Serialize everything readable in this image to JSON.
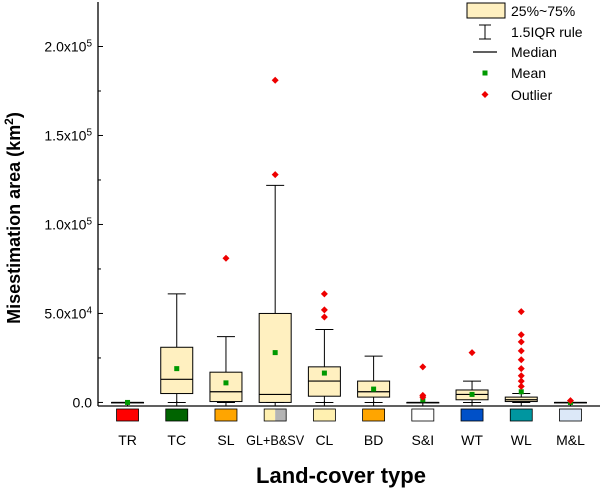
{
  "chart_data": {
    "type": "box",
    "xlabel": "Land-cover type",
    "ylabel": "Misestimation area (km²)",
    "ylabel_base": "Misestimation area (km",
    "ylabel_sup": "2",
    "ylabel_close": ")",
    "ylim": [
      -2000,
      225000
    ],
    "yticks": [
      0,
      50000,
      100000,
      150000,
      200000
    ],
    "ytick_labels": [
      {
        "mant": "0.0",
        "exp": ""
      },
      {
        "mant": "5.0x10",
        "exp": "4"
      },
      {
        "mant": "1.0x10",
        "exp": "5"
      },
      {
        "mant": "1.5x10",
        "exp": "5"
      },
      {
        "mant": "2.0x10",
        "exp": "5"
      }
    ],
    "categories": [
      "TR",
      "TC",
      "SL",
      "GL+B&SV",
      "CL",
      "BD",
      "S&I",
      "WT",
      "WL",
      "M&L"
    ],
    "swatches": [
      {
        "left": "#ff0000"
      },
      {
        "left": "#006400"
      },
      {
        "left": "#ffa500"
      },
      {
        "left": "#fff0b0",
        "right": "#b4b4b4"
      },
      {
        "left": "#fff0b0"
      },
      {
        "left": "#ffa500"
      },
      {
        "left": "#ffffff"
      },
      {
        "left": "#0050c8"
      },
      {
        "left": "#0096a0"
      },
      {
        "left": "#dce8f8"
      }
    ],
    "boxes": [
      {
        "name": "TR",
        "whisker_low": 0,
        "q1": 0,
        "median": 0,
        "q3": 0,
        "whisker_high": 0,
        "mean": 0,
        "outliers": []
      },
      {
        "name": "TC",
        "whisker_low": 0,
        "q1": 5000,
        "median": 13000,
        "q3": 31000,
        "whisker_high": 61000,
        "mean": 19000,
        "outliers": []
      },
      {
        "name": "SL",
        "whisker_low": 0,
        "q1": 500,
        "median": 6000,
        "q3": 17000,
        "whisker_high": 37000,
        "mean": 11000,
        "outliers": [
          81000
        ]
      },
      {
        "name": "GL+B&SV",
        "whisker_low": 0,
        "q1": 0,
        "median": 4500,
        "q3": 50000,
        "whisker_high": 122000,
        "mean": 28000,
        "outliers": [
          128000,
          181000
        ]
      },
      {
        "name": "CL",
        "whisker_low": 0,
        "q1": 3500,
        "median": 12000,
        "q3": 20000,
        "whisker_high": 41000,
        "mean": 16500,
        "outliers": [
          48000,
          52000,
          61000
        ]
      },
      {
        "name": "BD",
        "whisker_low": 0,
        "q1": 3000,
        "median": 6000,
        "q3": 12000,
        "whisker_high": 26000,
        "mean": 7500,
        "outliers": []
      },
      {
        "name": "S&I",
        "whisker_low": 0,
        "q1": 0,
        "median": 0,
        "q3": 0,
        "whisker_high": 0,
        "mean": 1500,
        "outliers": [
          3000,
          4000,
          20000
        ]
      },
      {
        "name": "WT",
        "whisker_low": 0,
        "q1": 1500,
        "median": 4500,
        "q3": 7000,
        "whisker_high": 12000,
        "mean": 4500,
        "outliers": [
          28000
        ]
      },
      {
        "name": "WL",
        "whisker_low": 0,
        "q1": 500,
        "median": 1500,
        "q3": 3000,
        "whisker_high": 5000,
        "mean": 6000,
        "outliers": [
          9000,
          12000,
          15000,
          19000,
          24000,
          29000,
          34000,
          38000,
          51000
        ]
      },
      {
        "name": "M&L",
        "whisker_low": 0,
        "q1": 0,
        "median": 0,
        "q3": 0,
        "whisker_high": 0,
        "mean": 0,
        "outliers": [
          1000
        ]
      }
    ],
    "legend": {
      "position": "top-right",
      "items": [
        "25%~75%",
        "1.5IQR rule",
        "Median",
        "Mean",
        "Outlier"
      ]
    },
    "colors": {
      "box_fill": "#fff0c0",
      "box_stroke": "#000000",
      "mean": "#009900",
      "outlier": "#ee0000"
    }
  }
}
